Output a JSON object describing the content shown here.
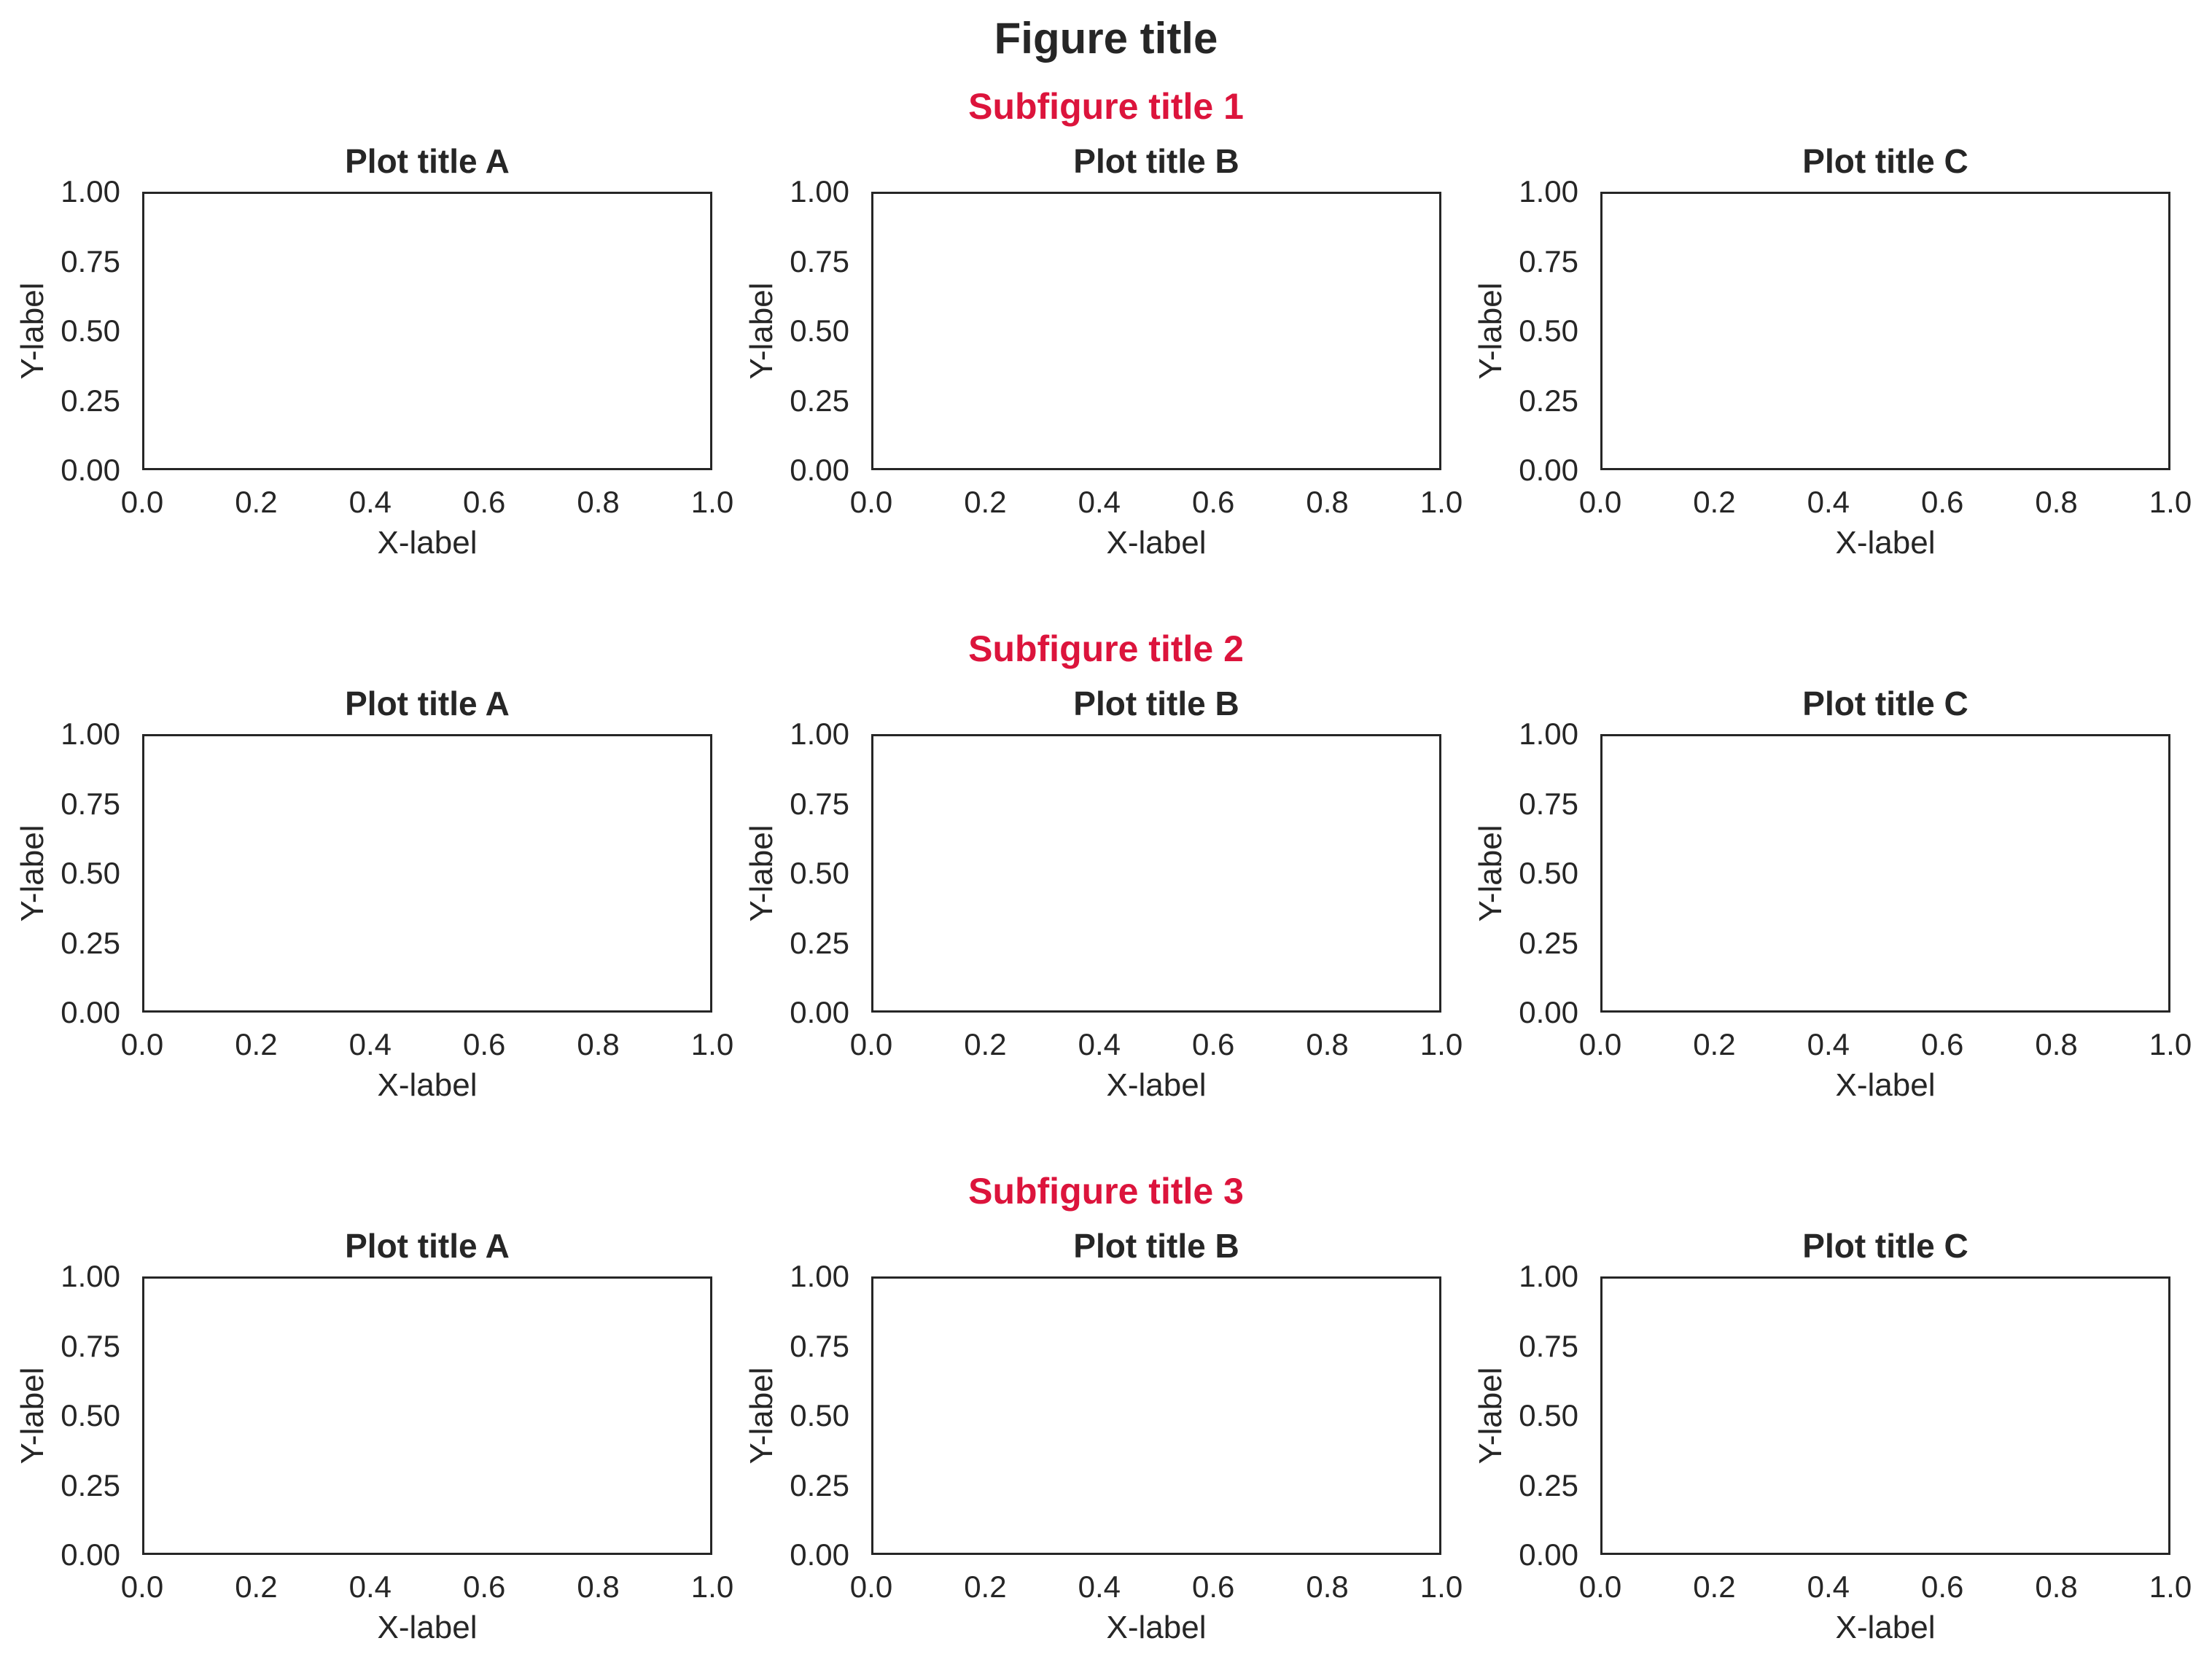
{
  "figure": {
    "title": "Figure title"
  },
  "subfigures": [
    {
      "title": "Subfigure title 1",
      "plots": [
        {
          "title": "Plot title A",
          "xlabel": "X-label",
          "ylabel": "Y-label"
        },
        {
          "title": "Plot title B",
          "xlabel": "X-label",
          "ylabel": "Y-label"
        },
        {
          "title": "Plot title C",
          "xlabel": "X-label",
          "ylabel": "Y-label"
        }
      ]
    },
    {
      "title": "Subfigure title 2",
      "plots": [
        {
          "title": "Plot title A",
          "xlabel": "X-label",
          "ylabel": "Y-label"
        },
        {
          "title": "Plot title B",
          "xlabel": "X-label",
          "ylabel": "Y-label"
        },
        {
          "title": "Plot title C",
          "xlabel": "X-label",
          "ylabel": "Y-label"
        }
      ]
    },
    {
      "title": "Subfigure title 3",
      "plots": [
        {
          "title": "Plot title A",
          "xlabel": "X-label",
          "ylabel": "Y-label"
        },
        {
          "title": "Plot title B",
          "xlabel": "X-label",
          "ylabel": "Y-label"
        },
        {
          "title": "Plot title C",
          "xlabel": "X-label",
          "ylabel": "Y-label"
        }
      ]
    }
  ],
  "axes": {
    "x_ticks": [
      "0.0",
      "0.2",
      "0.4",
      "0.6",
      "0.8",
      "1.0"
    ],
    "y_ticks": [
      "1.00",
      "0.75",
      "0.50",
      "0.25",
      "0.00"
    ]
  },
  "colors": {
    "figure_title_text": "#262626",
    "subfigure_title_accent": "#DC143C",
    "axis_text": "#262626",
    "spine": "#262626",
    "background": "#ffffff"
  },
  "chart_data": [
    {
      "type": "line",
      "subfigure_title": "Subfigure title 1",
      "plots": [
        {
          "title": "Plot title A",
          "xlabel": "X-label",
          "ylabel": "Y-label",
          "xlim": [
            0.0,
            1.0
          ],
          "ylim": [
            0.0,
            1.0
          ],
          "x_ticks": [
            0.0,
            0.2,
            0.4,
            0.6,
            0.8,
            1.0
          ],
          "y_ticks": [
            0.0,
            0.25,
            0.5,
            0.75,
            1.0
          ],
          "grid": false,
          "legend": false,
          "series": []
        },
        {
          "title": "Plot title B",
          "xlabel": "X-label",
          "ylabel": "Y-label",
          "xlim": [
            0.0,
            1.0
          ],
          "ylim": [
            0.0,
            1.0
          ],
          "x_ticks": [
            0.0,
            0.2,
            0.4,
            0.6,
            0.8,
            1.0
          ],
          "y_ticks": [
            0.0,
            0.25,
            0.5,
            0.75,
            1.0
          ],
          "grid": false,
          "legend": false,
          "series": []
        },
        {
          "title": "Plot title C",
          "xlabel": "X-label",
          "ylabel": "Y-label",
          "xlim": [
            0.0,
            1.0
          ],
          "ylim": [
            0.0,
            1.0
          ],
          "x_ticks": [
            0.0,
            0.2,
            0.4,
            0.6,
            0.8,
            1.0
          ],
          "y_ticks": [
            0.0,
            0.25,
            0.5,
            0.75,
            1.0
          ],
          "grid": false,
          "legend": false,
          "series": []
        }
      ]
    },
    {
      "type": "line",
      "subfigure_title": "Subfigure title 2",
      "plots": [
        {
          "title": "Plot title A",
          "xlabel": "X-label",
          "ylabel": "Y-label",
          "xlim": [
            0.0,
            1.0
          ],
          "ylim": [
            0.0,
            1.0
          ],
          "x_ticks": [
            0.0,
            0.2,
            0.4,
            0.6,
            0.8,
            1.0
          ],
          "y_ticks": [
            0.0,
            0.25,
            0.5,
            0.75,
            1.0
          ],
          "grid": false,
          "legend": false,
          "series": []
        },
        {
          "title": "Plot title B",
          "xlabel": "X-label",
          "ylabel": "Y-label",
          "xlim": [
            0.0,
            1.0
          ],
          "ylim": [
            0.0,
            1.0
          ],
          "x_ticks": [
            0.0,
            0.2,
            0.4,
            0.6,
            0.8,
            1.0
          ],
          "y_ticks": [
            0.0,
            0.25,
            0.5,
            0.75,
            1.0
          ],
          "grid": false,
          "legend": false,
          "series": []
        },
        {
          "title": "Plot title C",
          "xlabel": "X-label",
          "ylabel": "Y-label",
          "xlim": [
            0.0,
            1.0
          ],
          "ylim": [
            0.0,
            1.0
          ],
          "x_ticks": [
            0.0,
            0.2,
            0.4,
            0.6,
            0.8,
            1.0
          ],
          "y_ticks": [
            0.0,
            0.25,
            0.5,
            0.75,
            1.0
          ],
          "grid": false,
          "legend": false,
          "series": []
        }
      ]
    },
    {
      "type": "line",
      "subfigure_title": "Subfigure title 3",
      "plots": [
        {
          "title": "Plot title A",
          "xlabel": "X-label",
          "ylabel": "Y-label",
          "xlim": [
            0.0,
            1.0
          ],
          "ylim": [
            0.0,
            1.0
          ],
          "x_ticks": [
            0.0,
            0.2,
            0.4,
            0.6,
            0.8,
            1.0
          ],
          "y_ticks": [
            0.0,
            0.25,
            0.5,
            0.75,
            1.0
          ],
          "grid": false,
          "legend": false,
          "series": []
        },
        {
          "title": "Plot title B",
          "xlabel": "X-label",
          "ylabel": "Y-label",
          "xlim": [
            0.0,
            1.0
          ],
          "ylim": [
            0.0,
            1.0
          ],
          "x_ticks": [
            0.0,
            0.2,
            0.4,
            0.6,
            0.8,
            1.0
          ],
          "y_ticks": [
            0.0,
            0.25,
            0.5,
            0.75,
            1.0
          ],
          "grid": false,
          "legend": false,
          "series": []
        },
        {
          "title": "Plot title C",
          "xlabel": "X-label",
          "ylabel": "Y-label",
          "xlim": [
            0.0,
            1.0
          ],
          "ylim": [
            0.0,
            1.0
          ],
          "x_ticks": [
            0.0,
            0.2,
            0.4,
            0.6,
            0.8,
            1.0
          ],
          "y_ticks": [
            0.0,
            0.25,
            0.5,
            0.75,
            1.0
          ],
          "grid": false,
          "legend": false,
          "series": []
        }
      ]
    }
  ]
}
